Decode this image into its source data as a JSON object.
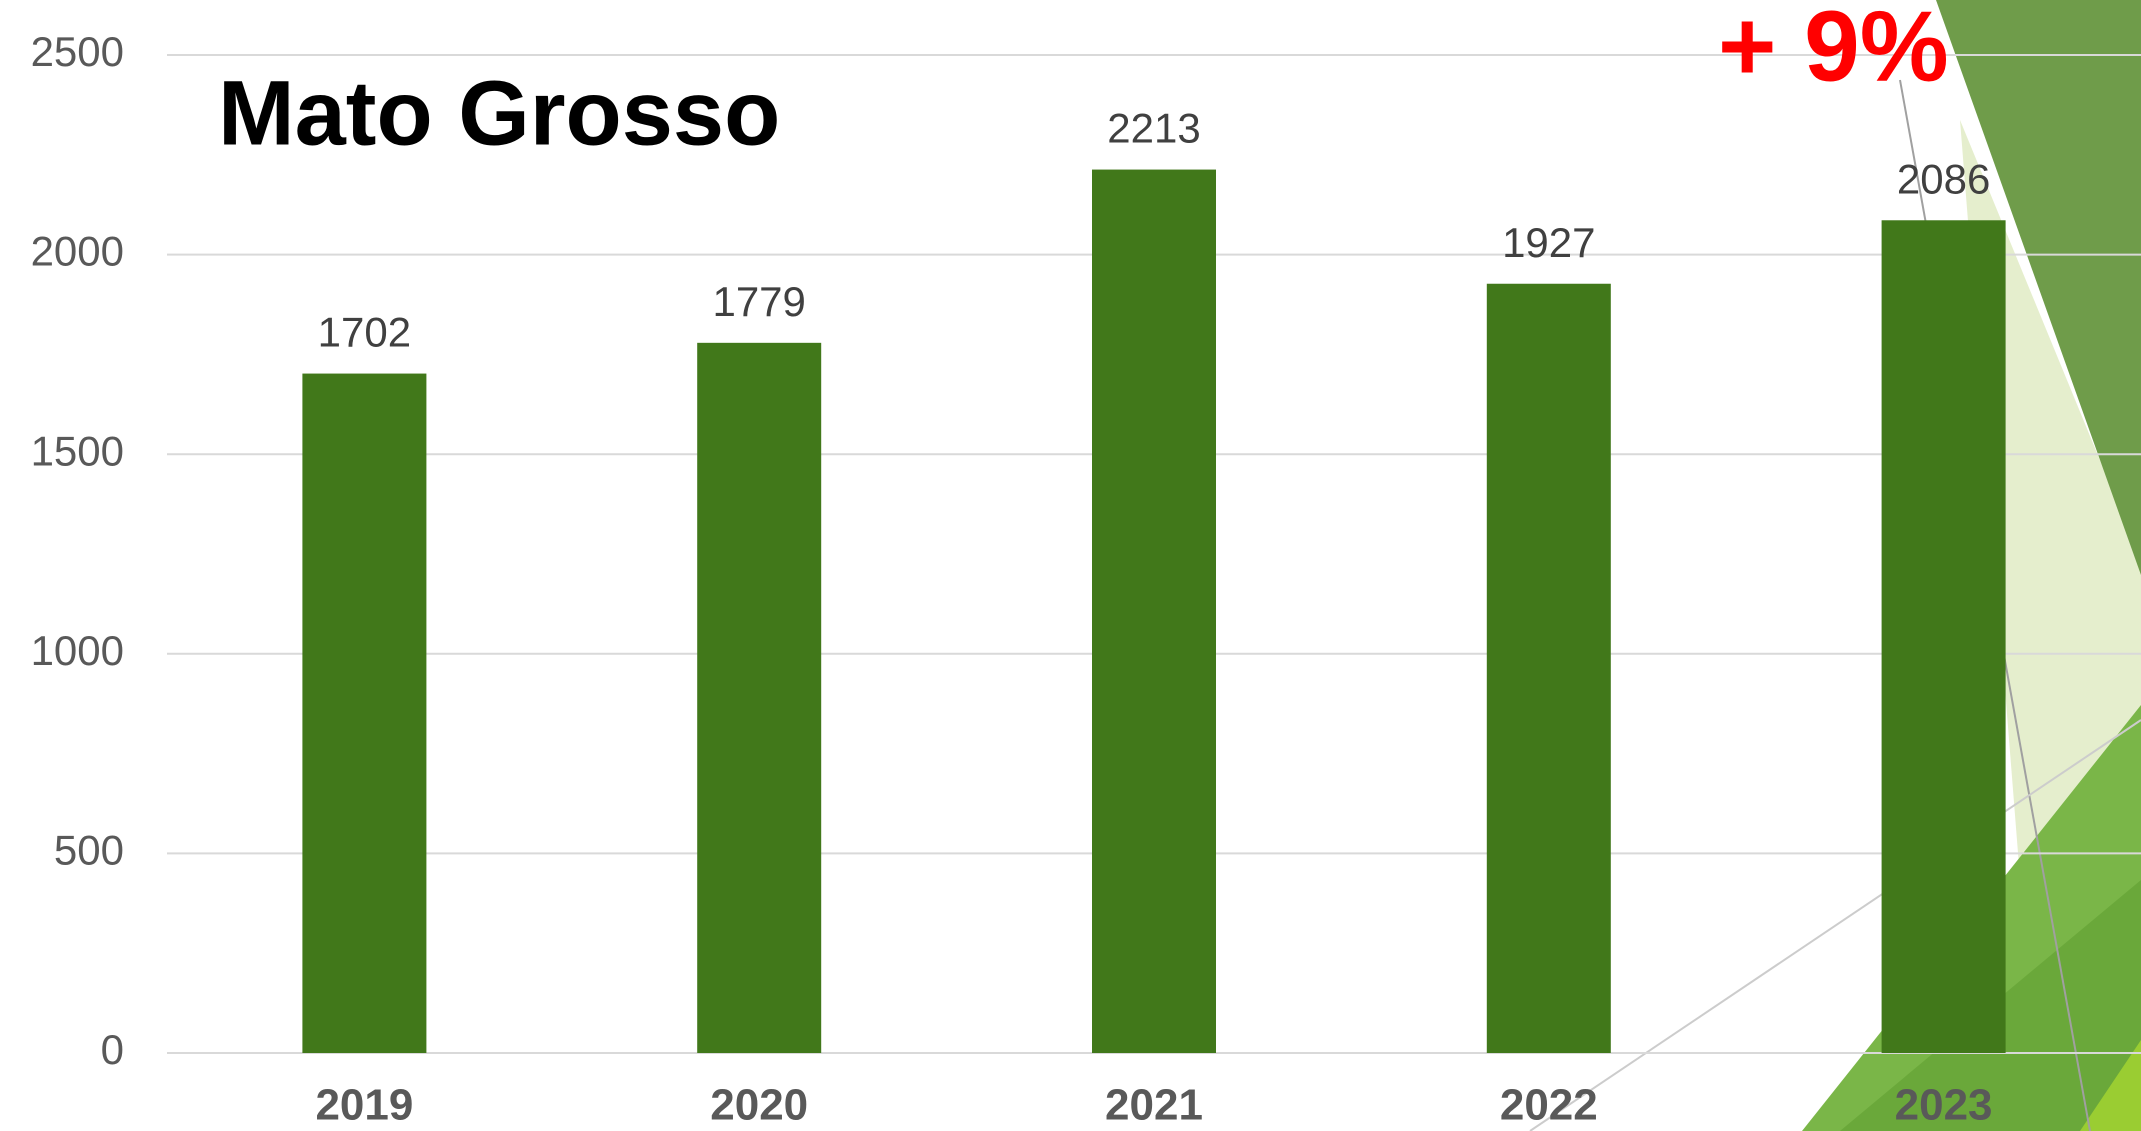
{
  "chart_data": {
    "type": "bar",
    "title": "Mato Grosso",
    "annotation": "+ 9%",
    "categories": [
      "2019",
      "2020",
      "2021",
      "2022",
      "2023"
    ],
    "values": [
      1702,
      1779,
      2213,
      1927,
      2086
    ],
    "color": "#41781a",
    "ylim": [
      0,
      2500
    ],
    "yticks": [
      0,
      500,
      1000,
      1500,
      2000,
      2500
    ],
    "grid": true
  }
}
